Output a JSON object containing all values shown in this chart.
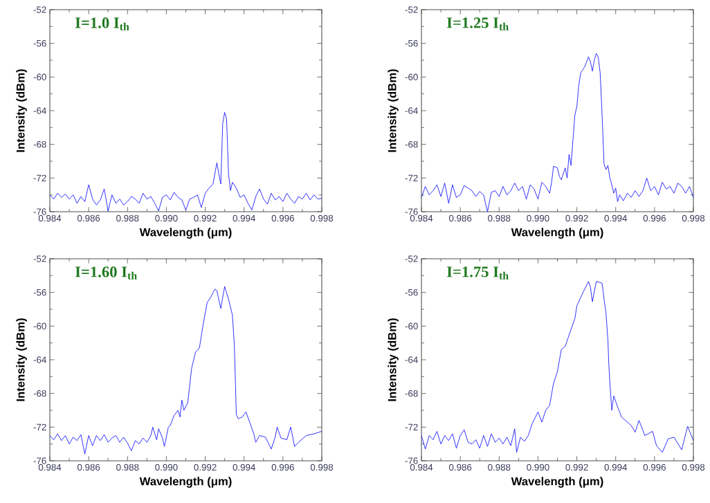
{
  "chart_data": [
    {
      "type": "line",
      "title": "I=1.0 I$_{th}$",
      "xlabel": "Wavelength (μm)",
      "ylabel": "Intensity (dBm)",
      "color": "#0000ff",
      "xlim": [
        0.984,
        0.998
      ],
      "ylim": [
        -76,
        -52
      ],
      "xticks": [
        0.984,
        {
          "value": 0.985,
          "label": null
        },
        0.986,
        {
          "value": 0.987,
          "label": null
        },
        0.988,
        {
          "value": 0.989,
          "label": null
        },
        {
          "value": 0.99,
          "label": "0.990"
        },
        {
          "value": 0.991,
          "label": null
        },
        0.992,
        {
          "value": 0.993,
          "label": null
        },
        0.994,
        {
          "value": 0.995,
          "label": null
        },
        0.996,
        {
          "value": 0.997,
          "label": null
        },
        0.998
      ],
      "yticks": [
        -76,
        {
          "value": -74,
          "label": null
        },
        -72,
        {
          "value": -70,
          "label": null
        },
        -68,
        {
          "value": -66,
          "label": null
        },
        -64,
        {
          "value": -62,
          "label": null
        },
        -60,
        {
          "value": -58,
          "label": null
        },
        -56,
        {
          "value": -54,
          "label": null
        },
        -52
      ],
      "x": [
        0.984,
        0.9842,
        0.9844,
        0.9846,
        0.9848,
        0.985,
        0.9852,
        0.9854,
        0.9856,
        0.9858,
        0.986,
        0.9862,
        0.9864,
        0.9866,
        0.9868,
        0.987,
        0.9872,
        0.9874,
        0.9876,
        0.9878,
        0.988,
        0.9882,
        0.9884,
        0.9886,
        0.9888,
        0.989,
        0.9892,
        0.9894,
        0.9896,
        0.9898,
        0.99,
        0.9902,
        0.9904,
        0.9906,
        0.9908,
        0.991,
        0.9912,
        0.9914,
        0.9916,
        0.9918,
        0.992,
        0.9922,
        0.9924,
        0.9926,
        0.9927,
        0.9928,
        0.9929,
        0.993,
        0.9931,
        0.9932,
        0.9933,
        0.9934,
        0.9936,
        0.9938,
        0.994,
        0.9942,
        0.9944,
        0.9946,
        0.9948,
        0.995,
        0.9952,
        0.9954,
        0.9956,
        0.9958,
        0.996,
        0.9962,
        0.9964,
        0.9966,
        0.9968,
        0.997,
        0.9972,
        0.9974,
        0.9976,
        0.9978,
        0.998
      ],
      "values": [
        -74.0,
        -74.5,
        -73.8,
        -74.3,
        -73.9,
        -74.5,
        -74.0,
        -75.0,
        -74.2,
        -74.8,
        -72.8,
        -74.5,
        -75.2,
        -74.6,
        -73.3,
        -75.9,
        -74.0,
        -75.0,
        -74.5,
        -75.2,
        -74.8,
        -74.2,
        -74.5,
        -75.0,
        -73.8,
        -74.5,
        -74.2,
        -75.0,
        -75.9,
        -74.3,
        -74.0,
        -74.6,
        -73.7,
        -74.3,
        -74.6,
        -75.8,
        -74.5,
        -74.3,
        -74.0,
        -75.5,
        -73.8,
        -73.2,
        -72.7,
        -70.2,
        -71.5,
        -72.7,
        -65.5,
        -64.2,
        -65.0,
        -71.5,
        -73.5,
        -72.5,
        -73.2,
        -74.3,
        -74.0,
        -75.0,
        -75.8,
        -74.2,
        -73.3,
        -74.5,
        -75.1,
        -73.8,
        -74.6,
        -74.2,
        -74.8,
        -73.8,
        -74.5,
        -75.0,
        -74.2,
        -74.5,
        -73.8,
        -74.6,
        -74.0,
        -74.5,
        -74.4
      ]
    },
    {
      "type": "line",
      "title": "I=1.25 I$_{th}$",
      "xlabel": "Wavelength (μm)",
      "ylabel": "Intensity (dBm)",
      "color": "#0000ff",
      "xlim": [
        0.984,
        0.998
      ],
      "ylim": [
        -76,
        -52
      ],
      "xticks": [
        0.984,
        {
          "value": 0.985,
          "label": null
        },
        0.986,
        {
          "value": 0.987,
          "label": null
        },
        0.988,
        {
          "value": 0.989,
          "label": null
        },
        {
          "value": 0.99,
          "label": "0.990"
        },
        {
          "value": 0.991,
          "label": null
        },
        0.992,
        {
          "value": 0.993,
          "label": null
        },
        0.994,
        {
          "value": 0.995,
          "label": null
        },
        0.996,
        {
          "value": 0.997,
          "label": null
        },
        0.998
      ],
      "yticks": [
        -76,
        {
          "value": -74,
          "label": null
        },
        -72,
        {
          "value": -70,
          "label": null
        },
        -68,
        {
          "value": -66,
          "label": null
        },
        -64,
        {
          "value": -62,
          "label": null
        },
        -60,
        {
          "value": -58,
          "label": null
        },
        -56,
        {
          "value": -54,
          "label": null
        },
        -52
      ],
      "x": [
        0.984,
        0.9842,
        0.9844,
        0.9846,
        0.9848,
        0.985,
        0.9852,
        0.9854,
        0.9856,
        0.9858,
        0.986,
        0.9862,
        0.9864,
        0.9866,
        0.9868,
        0.987,
        0.9872,
        0.9874,
        0.9876,
        0.9878,
        0.988,
        0.9882,
        0.9884,
        0.9886,
        0.9888,
        0.989,
        0.9892,
        0.9894,
        0.9896,
        0.9898,
        0.99,
        0.9902,
        0.9904,
        0.9906,
        0.9907,
        0.9908,
        0.991,
        0.9911,
        0.9912,
        0.9914,
        0.9915,
        0.9916,
        0.9917,
        0.9918,
        0.9919,
        0.992,
        0.9921,
        0.9922,
        0.9924,
        0.9926,
        0.9927,
        0.9928,
        0.9929,
        0.993,
        0.9931,
        0.9932,
        0.9933,
        0.9934,
        0.9935,
        0.9936,
        0.9937,
        0.9938,
        0.9939,
        0.994,
        0.9941,
        0.9942,
        0.9944,
        0.9946,
        0.9948,
        0.995,
        0.9952,
        0.9954,
        0.9956,
        0.9958,
        0.996,
        0.9962,
        0.9964,
        0.9966,
        0.9968,
        0.997,
        0.9972,
        0.9974,
        0.9976,
        0.9978,
        0.998
      ],
      "values": [
        -74.3,
        -73.0,
        -74.0,
        -73.5,
        -72.8,
        -74.2,
        -72.6,
        -75.0,
        -72.8,
        -74.3,
        -74.0,
        -72.9,
        -73.2,
        -73.5,
        -74.2,
        -73.6,
        -74.0,
        -76.0,
        -73.7,
        -73.5,
        -74.2,
        -73.0,
        -74.0,
        -73.5,
        -72.6,
        -73.5,
        -73.0,
        -74.5,
        -72.8,
        -73.3,
        -74.5,
        -72.5,
        -73.0,
        -73.8,
        -72.5,
        -70.6,
        -70.8,
        -71.8,
        -72.2,
        -70.8,
        -72.0,
        -69.2,
        -70.5,
        -67.5,
        -64.5,
        -63.5,
        -61.0,
        -59.5,
        -58.8,
        -57.6,
        -58.2,
        -59.3,
        -58.0,
        -57.2,
        -57.6,
        -59.5,
        -64.5,
        -70.3,
        -71.0,
        -70.5,
        -72.0,
        -72.8,
        -73.8,
        -73.2,
        -74.8,
        -74.0,
        -74.7,
        -73.8,
        -74.3,
        -73.5,
        -74.2,
        -73.5,
        -72.0,
        -73.5,
        -73.0,
        -74.0,
        -72.5,
        -73.3,
        -73.0,
        -73.8,
        -72.6,
        -73.0,
        -73.8,
        -73.0,
        -74.3
      ]
    },
    {
      "type": "line",
      "title": "I=1.60 I$_{th}$",
      "xlabel": "Wavelength (μm)",
      "ylabel": "Intensity (dBm)",
      "color": "#0000ff",
      "xlim": [
        0.984,
        0.998
      ],
      "ylim": [
        -76,
        -52
      ],
      "xticks": [
        0.984,
        {
          "value": 0.985,
          "label": null
        },
        0.986,
        {
          "value": 0.987,
          "label": null
        },
        0.988,
        {
          "value": 0.989,
          "label": null
        },
        {
          "value": 0.99,
          "label": "0.990"
        },
        {
          "value": 0.991,
          "label": null
        },
        0.992,
        {
          "value": 0.993,
          "label": null
        },
        0.994,
        {
          "value": 0.995,
          "label": null
        },
        0.996,
        {
          "value": 0.997,
          "label": null
        },
        0.998
      ],
      "yticks": [
        -76,
        {
          "value": -74,
          "label": null
        },
        -72,
        {
          "value": -70,
          "label": null
        },
        -68,
        {
          "value": -66,
          "label": null
        },
        -64,
        {
          "value": -62,
          "label": null
        },
        -60,
        {
          "value": -58,
          "label": null
        },
        -56,
        {
          "value": -54,
          "label": null
        },
        -52
      ],
      "x": [
        0.984,
        0.9842,
        0.9844,
        0.9846,
        0.9848,
        0.985,
        0.9852,
        0.9854,
        0.9856,
        0.9858,
        0.986,
        0.9862,
        0.9864,
        0.9866,
        0.9868,
        0.987,
        0.9872,
        0.9874,
        0.9876,
        0.9878,
        0.988,
        0.9882,
        0.9884,
        0.9886,
        0.9888,
        0.989,
        0.9892,
        0.9893,
        0.9895,
        0.9896,
        0.9898,
        0.9899,
        0.9901,
        0.9902,
        0.9904,
        0.9906,
        0.9907,
        0.9908,
        0.9909,
        0.9911,
        0.9913,
        0.9915,
        0.9917,
        0.9919,
        0.9921,
        0.9923,
        0.9925,
        0.9926,
        0.9928,
        0.993,
        0.9932,
        0.9934,
        0.9935,
        0.9936,
        0.9937,
        0.9939,
        0.9941,
        0.9943,
        0.9945,
        0.9946,
        0.9948,
        0.9951,
        0.9954,
        0.9956,
        0.9957,
        0.9959,
        0.9962,
        0.9964,
        0.9966,
        0.9968,
        0.9972,
        0.9976,
        0.998
      ],
      "values": [
        -73.0,
        -73.5,
        -72.8,
        -73.6,
        -73.0,
        -74.0,
        -73.2,
        -73.6,
        -72.9,
        -75.2,
        -73.0,
        -74.2,
        -73.0,
        -73.6,
        -72.9,
        -73.8,
        -73.3,
        -73.0,
        -73.8,
        -73.2,
        -73.9,
        -74.8,
        -73.6,
        -74.0,
        -73.3,
        -73.8,
        -73.0,
        -72.0,
        -73.5,
        -72.2,
        -73.3,
        -74.3,
        -72.0,
        -71.8,
        -70.6,
        -70.0,
        -70.8,
        -68.8,
        -70.0,
        -69.1,
        -65.0,
        -63.1,
        -62.6,
        -59.7,
        -57.2,
        -56.5,
        -55.6,
        -55.8,
        -57.9,
        -55.3,
        -56.8,
        -58.7,
        -62.3,
        -70.5,
        -71.0,
        -70.8,
        -70.2,
        -71.5,
        -72.8,
        -73.8,
        -73.0,
        -73.2,
        -74.6,
        -73.2,
        -72.0,
        -73.3,
        -73.5,
        -72.0,
        -74.3,
        -73.8,
        -73.0,
        -72.8,
        -72.5
      ]
    },
    {
      "type": "line",
      "title": "I=1.75 I$_{th}$",
      "xlabel": "Wavelength (μm)",
      "ylabel": "Intensity (dBm)",
      "color": "#0000ff",
      "xlim": [
        0.984,
        0.998
      ],
      "ylim": [
        -76,
        -52
      ],
      "xticks": [
        0.984,
        {
          "value": 0.985,
          "label": null
        },
        0.986,
        {
          "value": 0.987,
          "label": null
        },
        0.988,
        {
          "value": 0.989,
          "label": null
        },
        {
          "value": 0.99,
          "label": "0.990"
        },
        {
          "value": 0.991,
          "label": null
        },
        0.992,
        {
          "value": 0.993,
          "label": null
        },
        0.994,
        {
          "value": 0.995,
          "label": null
        },
        0.996,
        {
          "value": 0.997,
          "label": null
        },
        0.998
      ],
      "yticks": [
        -76,
        {
          "value": -74,
          "label": null
        },
        -72,
        {
          "value": -70,
          "label": null
        },
        -68,
        {
          "value": -66,
          "label": null
        },
        -64,
        {
          "value": -62,
          "label": null
        },
        -60,
        {
          "value": -58,
          "label": null
        },
        -56,
        {
          "value": -54,
          "label": null
        },
        -52
      ],
      "x": [
        0.984,
        0.9842,
        0.9844,
        0.9846,
        0.9848,
        0.985,
        0.9852,
        0.9854,
        0.9856,
        0.9858,
        0.986,
        0.9862,
        0.9864,
        0.9866,
        0.9868,
        0.987,
        0.9872,
        0.9874,
        0.9876,
        0.9878,
        0.988,
        0.9882,
        0.9884,
        0.9886,
        0.9888,
        0.9889,
        0.9891,
        0.9893,
        0.9895,
        0.9897,
        0.99,
        0.9902,
        0.9904,
        0.9906,
        0.9908,
        0.991,
        0.9912,
        0.9914,
        0.9917,
        0.9919,
        0.992,
        0.9923,
        0.9926,
        0.9927,
        0.9928,
        0.993,
        0.9933,
        0.9934,
        0.9935,
        0.9936,
        0.99365,
        0.9937,
        0.9938,
        0.9939,
        0.9941,
        0.9943,
        0.9945,
        0.9948,
        0.995,
        0.9952,
        0.9955,
        0.9959,
        0.9961,
        0.9964,
        0.9967,
        0.997,
        0.9974,
        0.9977,
        0.998
      ],
      "values": [
        -73.0,
        -74.6,
        -73.0,
        -73.5,
        -72.5,
        -74.0,
        -73.0,
        -73.6,
        -72.8,
        -74.5,
        -73.0,
        -72.3,
        -73.8,
        -74.0,
        -73.5,
        -74.5,
        -73.0,
        -74.3,
        -72.8,
        -73.8,
        -73.3,
        -74.0,
        -73.2,
        -74.2,
        -72.2,
        -75.0,
        -73.2,
        -73.7,
        -73.0,
        -71.6,
        -70.2,
        -71.4,
        -70.0,
        -69.4,
        -66.8,
        -65.4,
        -62.8,
        -62.4,
        -60.4,
        -59.1,
        -57.6,
        -56.1,
        -54.7,
        -55.4,
        -57.1,
        -54.7,
        -54.9,
        -56.8,
        -58.4,
        -61.7,
        -64.7,
        -66.7,
        -70.0,
        -68.3,
        -69.6,
        -70.8,
        -71.2,
        -71.8,
        -72.6,
        -71.2,
        -73.0,
        -72.5,
        -74.2,
        -75.0,
        -73.4,
        -73.2,
        -74.7,
        -71.9,
        -73.6
      ]
    }
  ]
}
